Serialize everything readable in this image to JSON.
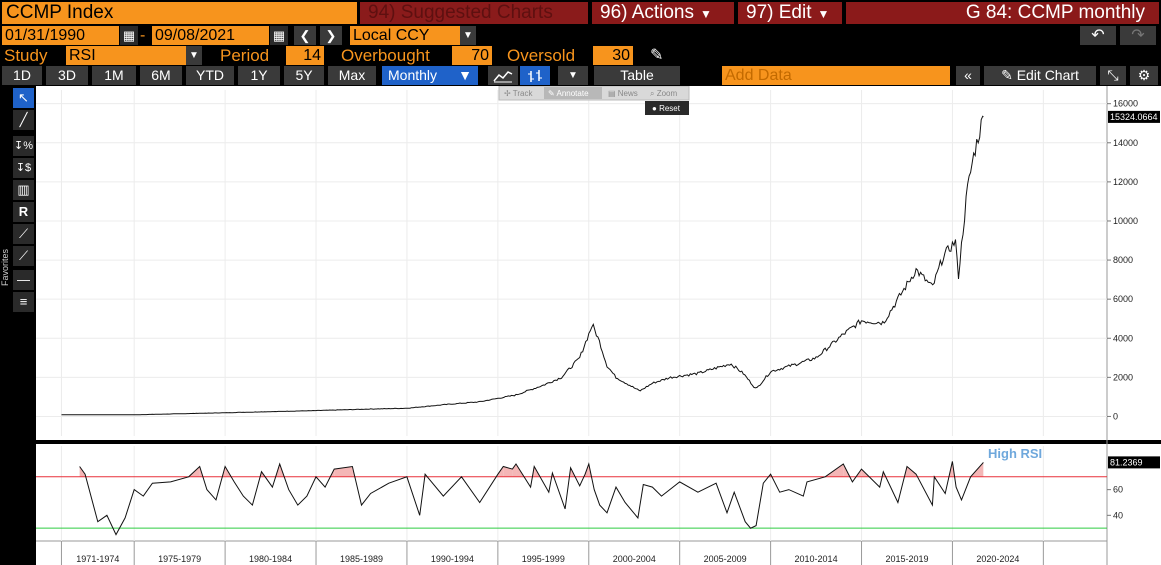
{
  "header": {
    "security": "CCMP Index",
    "suggested": "94) Suggested Charts",
    "actions": "96) Actions",
    "edit": "97) Edit",
    "chart_id": "G 84: CCMP monthly"
  },
  "range": {
    "start": "01/31/1990",
    "dash": "-",
    "end": "09/08/2021",
    "currency": "Local CCY"
  },
  "study": {
    "label": "Study",
    "value": "RSI",
    "period_label": "Period",
    "period": "14",
    "overbought_label": "Overbought",
    "overbought": "70",
    "oversold_label": "Oversold",
    "oversold": "30"
  },
  "timeframes": [
    "1D",
    "3D",
    "1M",
    "6M",
    "YTD",
    "1Y",
    "5Y",
    "Max"
  ],
  "toolbar": {
    "frequency": "Monthly",
    "table": "Table",
    "add_data_placeholder": "Add Data",
    "edit_chart": "Edit Chart"
  },
  "hover_menu": {
    "track": "Track",
    "annotate": "Annotate",
    "news": "News",
    "zoom": "Zoom",
    "reset": "Reset"
  },
  "sidebar": {
    "favorites": "Favorites"
  },
  "colors": {
    "orange": "#f7941d",
    "red_button": "#8b1a1a",
    "active_blue": "#1f62c9",
    "overbought_line": "#e8303a",
    "oversold_line": "#2ecc40",
    "overbought_fill": "#f4b6b6",
    "annotation_blue": "#6fa8dc"
  },
  "chart_data": [
    {
      "type": "line",
      "series": [
        {
          "name": "CCMP Index",
          "last_value": "15324.0664"
        }
      ],
      "x": [
        1971,
        1975,
        1980,
        1985,
        1988,
        1990,
        1992,
        1994,
        1996,
        1997.5,
        1998.5,
        1999.5,
        2000.2,
        2000.6,
        2001,
        2001.5,
        2002.8,
        2003.5,
        2004.5,
        2006,
        2007.8,
        2008.5,
        2009.2,
        2010,
        2011.5,
        2012.5,
        2014,
        2015,
        2016.2,
        2017,
        2018,
        2018.9,
        2019.5,
        2020.2,
        2020.3,
        2020.8,
        2021.2,
        2021.7
      ],
      "values": [
        90,
        85,
        190,
        300,
        380,
        420,
        600,
        750,
        1100,
        1600,
        2000,
        3000,
        4700,
        3800,
        2600,
        2000,
        1300,
        1700,
        2000,
        2200,
        2700,
        2200,
        1400,
        2300,
        2700,
        3000,
        4200,
        4900,
        4800,
        6000,
        7500,
        6600,
        8200,
        9000,
        6900,
        11500,
        13500,
        15324
      ],
      "ylim": [
        -1000,
        16700
      ],
      "yticks": [
        0,
        2000,
        4000,
        6000,
        8000,
        10000,
        12000,
        14000,
        16000
      ]
    },
    {
      "type": "line",
      "series": [
        {
          "name": "RSI",
          "last_value": "81.2369"
        }
      ],
      "x": [
        1972,
        1972.3,
        1973,
        1973.5,
        1974,
        1974.5,
        1975,
        1975.5,
        1976,
        1977,
        1978,
        1978.6,
        1979,
        1979.5,
        1980,
        1980.5,
        1981,
        1981.5,
        1982,
        1982.6,
        1983,
        1983.5,
        1984,
        1984.5,
        1985,
        1985.5,
        1986,
        1987,
        1987.5,
        1988,
        1989,
        1990,
        1990.7,
        1991,
        1992,
        1993,
        1994,
        1995,
        1995.3,
        1995.8,
        1996,
        1996.8,
        1997,
        1997.8,
        1998,
        1998.7,
        1999,
        1999.5,
        1999.8,
        2000,
        2000.3,
        2000.6,
        2001,
        2001.5,
        2002,
        2002.7,
        2003,
        2003.5,
        2004,
        2005,
        2006,
        2007,
        2007.6,
        2008,
        2008.6,
        2008.9,
        2009.2,
        2009.6,
        2010,
        2010.5,
        2011,
        2011.8,
        2012,
        2013,
        2014,
        2014.5,
        2015,
        2016,
        2016.2,
        2017,
        2017.5,
        2018,
        2018.9,
        2019,
        2019.6,
        2020,
        2020.2,
        2020.5,
        2021,
        2021.7
      ],
      "values": [
        78,
        72,
        35,
        40,
        25,
        38,
        60,
        55,
        65,
        66,
        70,
        78,
        60,
        52,
        78,
        66,
        55,
        48,
        74,
        62,
        80,
        60,
        48,
        55,
        70,
        62,
        76,
        78,
        48,
        57,
        65,
        70,
        40,
        72,
        55,
        70,
        50,
        72,
        78,
        76,
        80,
        62,
        78,
        58,
        73,
        45,
        77,
        63,
        72,
        80,
        60,
        48,
        42,
        62,
        50,
        38,
        64,
        62,
        55,
        66,
        58,
        65,
        42,
        58,
        35,
        30,
        32,
        65,
        72,
        58,
        60,
        55,
        66,
        70,
        80,
        66,
        76,
        62,
        74,
        50,
        78,
        72,
        48,
        70,
        57,
        82,
        62,
        52,
        70,
        81.2369
      ],
      "ylim": [
        20,
        94
      ],
      "yticks": [
        40,
        60
      ],
      "overbought": 70,
      "oversold": 30,
      "annotation": "High RSI"
    }
  ],
  "x_axis_labels": [
    "1971-1974",
    "1975-1979",
    "1980-1984",
    "1985-1989",
    "1990-1994",
    "1995-1999",
    "2000-2004",
    "2005-2009",
    "2010-2014",
    "2015-2019",
    "2020-2024"
  ]
}
